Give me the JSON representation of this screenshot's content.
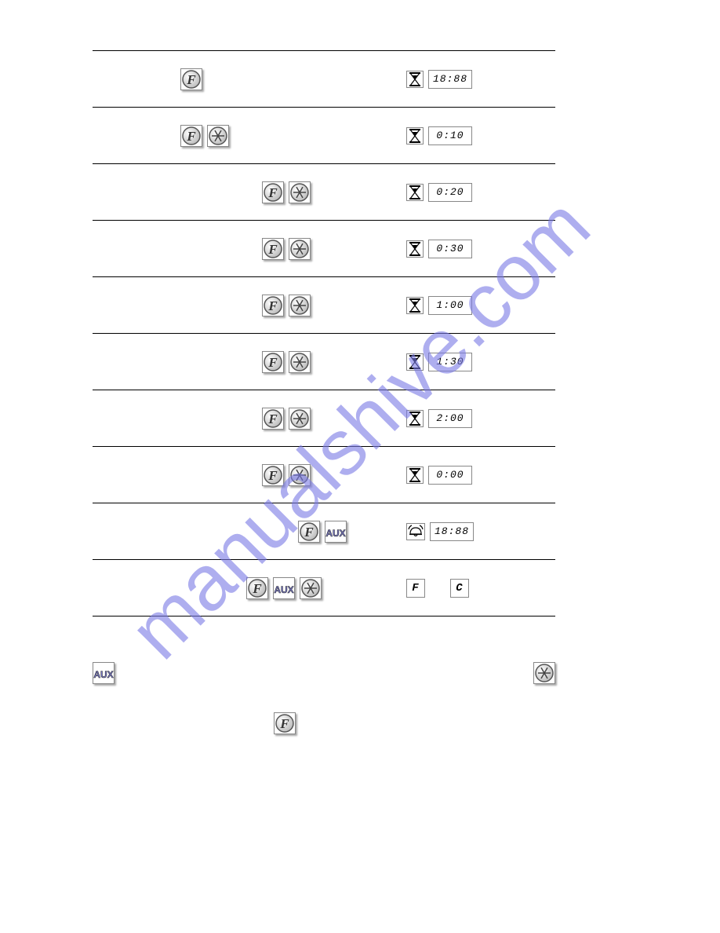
{
  "watermark": "manualshive.com",
  "rows": [
    {
      "indent": 112,
      "press_icons": [
        "f"
      ],
      "disp_icons": [
        "hourglass"
      ],
      "disp_text": "18:88"
    },
    {
      "indent": 112,
      "press_icons": [
        "f",
        "snowflake"
      ],
      "disp_icons": [
        "hourglass"
      ],
      "disp_text": "0:10"
    },
    {
      "indent": 216,
      "press_icons": [
        "f",
        "snowflake"
      ],
      "disp_icons": [
        "hourglass"
      ],
      "disp_text": "0:20"
    },
    {
      "indent": 216,
      "press_icons": [
        "f",
        "snowflake"
      ],
      "disp_icons": [
        "hourglass"
      ],
      "disp_text": "0:30"
    },
    {
      "indent": 216,
      "press_icons": [
        "f",
        "snowflake"
      ],
      "disp_icons": [
        "hourglass"
      ],
      "disp_text": "1:00"
    },
    {
      "indent": 216,
      "press_icons": [
        "f",
        "snowflake"
      ],
      "disp_icons": [
        "hourglass"
      ],
      "disp_text": "1:30"
    },
    {
      "indent": 216,
      "press_icons": [
        "f",
        "snowflake"
      ],
      "disp_icons": [
        "hourglass"
      ],
      "disp_text": "2:00"
    },
    {
      "indent": 216,
      "press_icons": [
        "f",
        "snowflake"
      ],
      "disp_icons": [
        "hourglass"
      ],
      "disp_text": "0:00"
    },
    {
      "indent": 262,
      "press_icons": [
        "f",
        "aux"
      ],
      "disp_icons": [
        "bell"
      ],
      "disp_text": "18:88"
    },
    {
      "indent": 196,
      "press_icons": [
        "f",
        "aux",
        "snowflake"
      ],
      "disp_icons": [],
      "disp_text": "",
      "disp_char_boxes": [
        "F",
        "C"
      ]
    }
  ],
  "colors": {
    "border": "#888888",
    "watermark": "#7a7ae6"
  }
}
